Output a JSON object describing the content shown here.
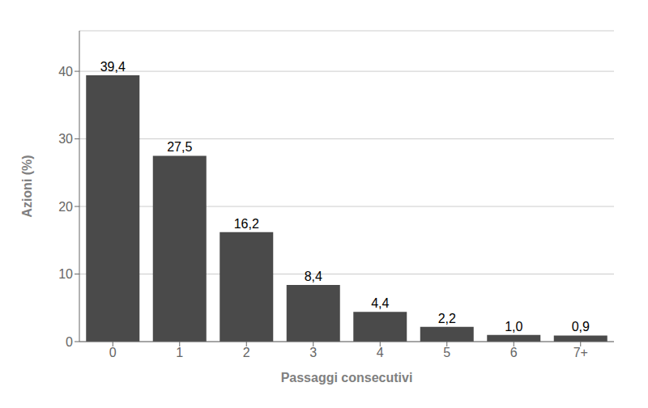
{
  "chart_data": {
    "type": "bar",
    "categories": [
      "0",
      "1",
      "2",
      "3",
      "4",
      "5",
      "6",
      "7+"
    ],
    "values": [
      39.4,
      27.5,
      16.2,
      8.4,
      4.4,
      2.2,
      1.0,
      0.9
    ],
    "value_labels": [
      "39,4",
      "27,5",
      "16,2",
      "8,4",
      "4,4",
      "2,2",
      "1,0",
      "0,9"
    ],
    "data_labels": true,
    "color": "#4a4a4a",
    "xlabel": "Passaggi consecutivi",
    "ylabel": "Azioni (%)",
    "ylim": [
      0,
      46
    ],
    "yticks": [
      0,
      10,
      20,
      30,
      40
    ],
    "grid": true
  }
}
